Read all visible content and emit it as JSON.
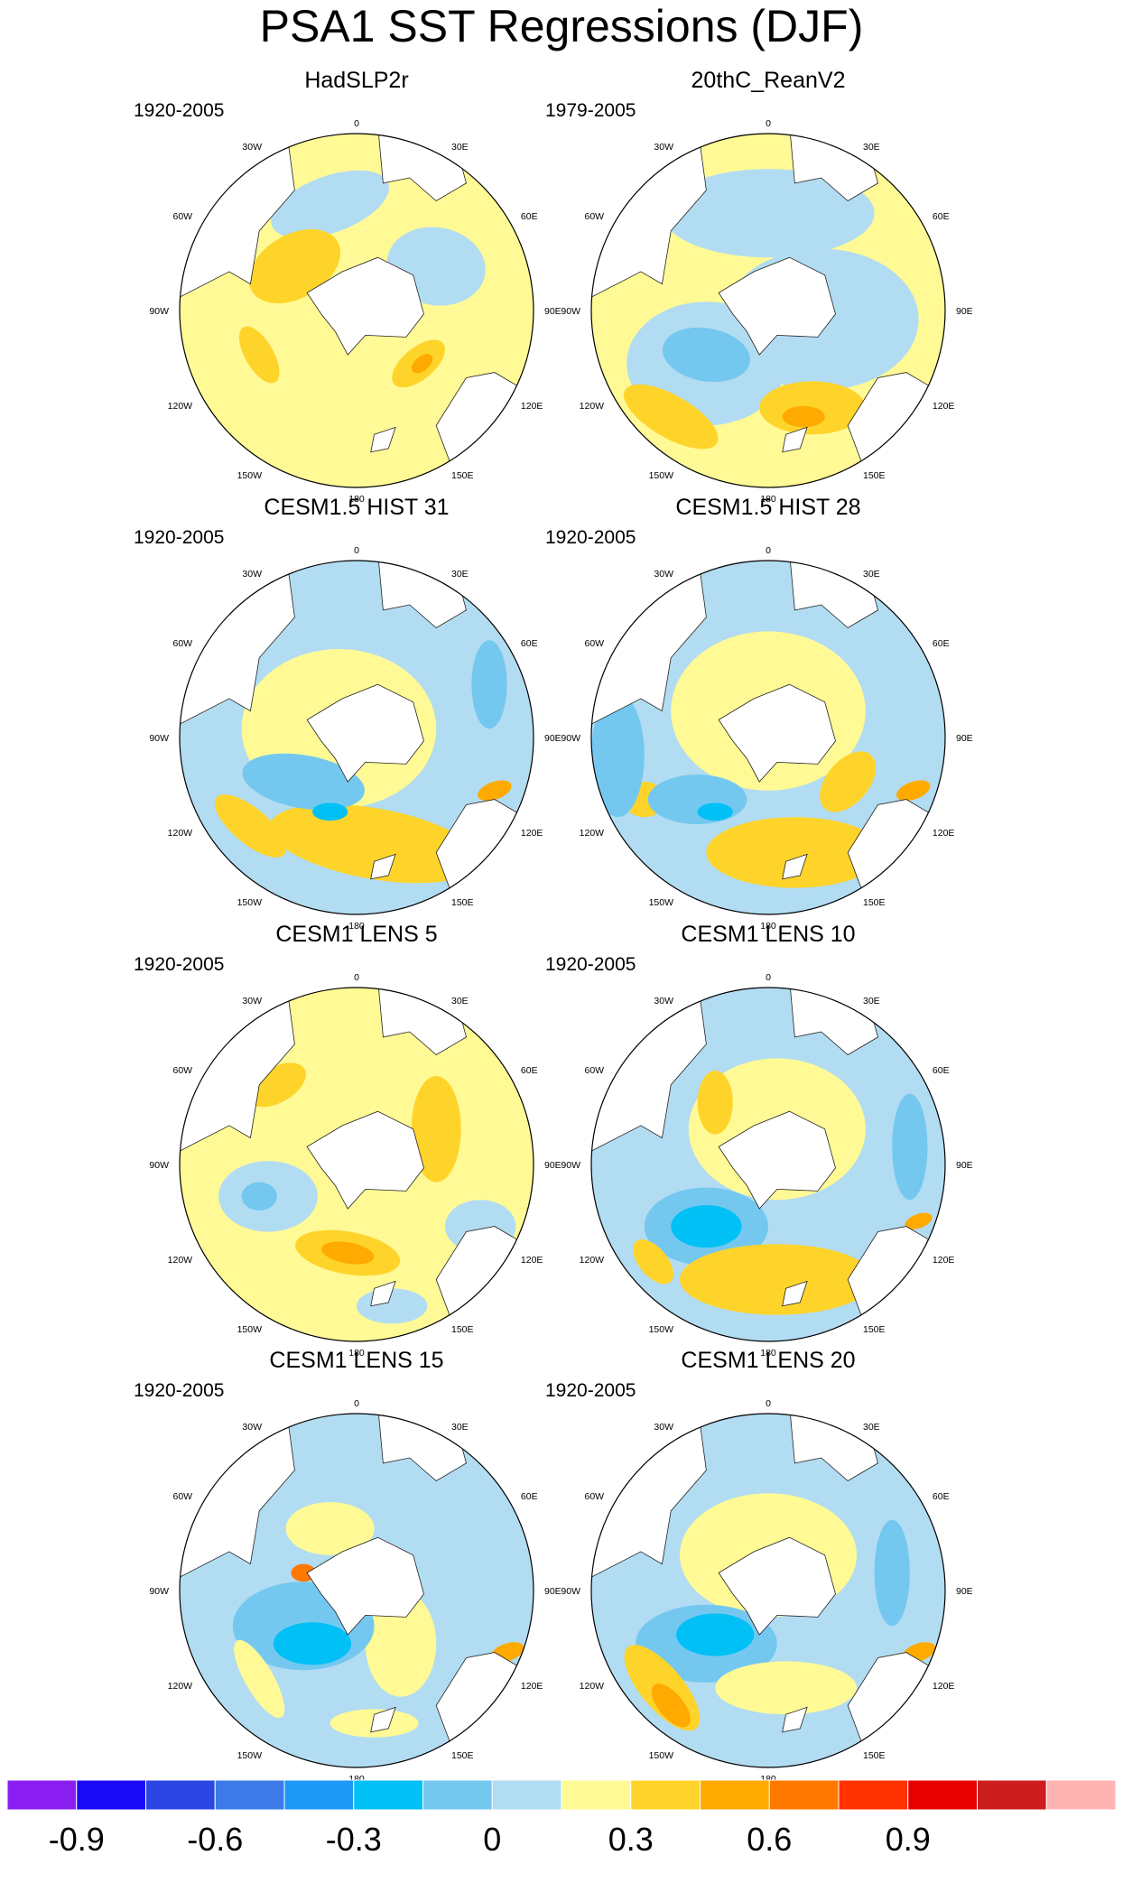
{
  "title": "PSA1 SST Regressions (DJF)",
  "chart_data": {
    "type": "polar-contour-map",
    "projection": "south-polar-stereographic",
    "variable": "SST regression onto PSA1 index",
    "season": "DJF",
    "longitude_labels": [
      "0",
      "30E",
      "60E",
      "90E",
      "120E",
      "150E",
      "180",
      "150W",
      "120W",
      "90W",
      "60W",
      "30W"
    ],
    "panels": [
      {
        "title": "HadSLP2r",
        "period": "1920-2005"
      },
      {
        "title": "20thC_ReanV2",
        "period": "1979-2005"
      },
      {
        "title": "CESM1.5 HIST 31",
        "period": "1920-2005"
      },
      {
        "title": "CESM1.5 HIST 28",
        "period": "1920-2005"
      },
      {
        "title": "CESM1 LENS 5",
        "period": "1920-2005"
      },
      {
        "title": "CESM1 LENS 10",
        "period": "1920-2005"
      },
      {
        "title": "CESM1 LENS 15",
        "period": "1920-2005"
      },
      {
        "title": "CESM1 LENS 20",
        "period": "1920-2005"
      }
    ],
    "colorbar": {
      "ticks": [
        "-0.9",
        "-0.6",
        "-0.3",
        "0",
        "0.3",
        "0.6",
        "0.9"
      ],
      "colors": [
        "#8a1ef0",
        "#1a0af5",
        "#2c46e6",
        "#3c7ae8",
        "#1c9af5",
        "#00c0f5",
        "#74c8f0",
        "#b2dcf2",
        "#fffa96",
        "#ffd42a",
        "#ffaa00",
        "#ff7800",
        "#ff3200",
        "#e60000",
        "#cc1e1e",
        "#ffb4b4"
      ]
    }
  }
}
